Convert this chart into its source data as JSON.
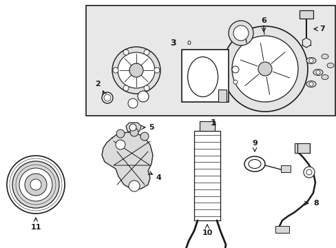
{
  "bg_color": "#ffffff",
  "box_bg": "#e8e8e8",
  "line_color": "#1a1a1a",
  "figsize": [
    4.89,
    3.6
  ],
  "dpi": 100
}
